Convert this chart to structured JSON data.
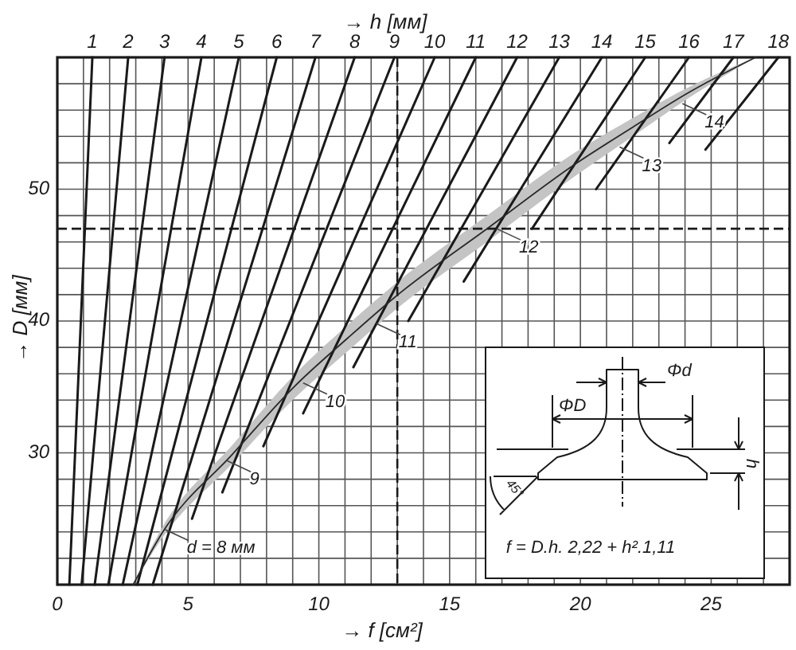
{
  "chart_data": {
    "type": "line",
    "xlabel": "→ f [см²]",
    "ylabel": "→ D [мм]",
    "legend_title": "→ h [мм]",
    "xlim": [
      0,
      28
    ],
    "ylim": [
      20,
      60
    ],
    "xticks": [
      0,
      {
        "value": 1,
        "label": null
      },
      {
        "value": 2,
        "label": null
      },
      {
        "value": 3,
        "label": null
      },
      {
        "value": 4,
        "label": null
      },
      5,
      {
        "value": 6,
        "label": null
      },
      {
        "value": 7,
        "label": null
      },
      {
        "value": 8,
        "label": null
      },
      {
        "value": 9,
        "label": null
      },
      10,
      {
        "value": 11,
        "label": null
      },
      {
        "value": 12,
        "label": null
      },
      {
        "value": 13,
        "label": null
      },
      {
        "value": 14,
        "label": null
      },
      15,
      {
        "value": 16,
        "label": null
      },
      {
        "value": 17,
        "label": null
      },
      {
        "value": 18,
        "label": null
      },
      {
        "value": 19,
        "label": null
      },
      20,
      {
        "value": 21,
        "label": null
      },
      {
        "value": 22,
        "label": null
      },
      {
        "value": 23,
        "label": null
      },
      {
        "value": 24,
        "label": null
      },
      25,
      {
        "value": 26,
        "label": null
      },
      {
        "value": 27,
        "label": null
      },
      {
        "value": 28,
        "label": null
      }
    ],
    "yticks": [
      {
        "value": 20,
        "label": null
      },
      {
        "value": 22,
        "label": null
      },
      {
        "value": 24,
        "label": null
      },
      {
        "value": 26,
        "label": null
      },
      {
        "value": 28,
        "label": null
      },
      30,
      {
        "value": 32,
        "label": null
      },
      {
        "value": 34,
        "label": null
      },
      {
        "value": 36,
        "label": null
      },
      {
        "value": 38,
        "label": null
      },
      40,
      {
        "value": 42,
        "label": null
      },
      {
        "value": 44,
        "label": null
      },
      {
        "value": 46,
        "label": null
      },
      {
        "value": 48,
        "label": null
      },
      50,
      {
        "value": 52,
        "label": null
      },
      {
        "value": 54,
        "label": null
      },
      {
        "value": 56,
        "label": null
      },
      {
        "value": 58,
        "label": null
      },
      {
        "value": 60,
        "label": null
      }
    ],
    "grid": true,
    "series": [
      {
        "name": "1",
        "color": "#1a1a1a",
        "x": [
          0.46,
          1.34
        ],
        "values": [
          20,
          60
        ]
      },
      {
        "name": "2",
        "color": "#1a1a1a",
        "x": [
          0.93,
          2.71
        ],
        "values": [
          20,
          60
        ]
      },
      {
        "name": "3",
        "color": "#1a1a1a",
        "x": [
          1.43,
          4.1
        ],
        "values": [
          20,
          60
        ]
      },
      {
        "name": "4",
        "color": "#1a1a1a",
        "x": [
          1.95,
          5.51
        ],
        "values": [
          20,
          60
        ]
      },
      {
        "name": "5",
        "color": "#1a1a1a",
        "x": [
          2.5,
          6.94
        ],
        "values": [
          20,
          60
        ]
      },
      {
        "name": "6",
        "color": "#1a1a1a",
        "x": [
          3.06,
          8.39
        ],
        "values": [
          20,
          60
        ]
      },
      {
        "name": "7",
        "color": "#1a1a1a",
        "x": [
          3.65,
          9.87
        ],
        "values": [
          20,
          60
        ]
      },
      {
        "name": "8",
        "color": "#1a1a1a",
        "x": [
          5.15,
          11.37
        ],
        "values": [
          25,
          60
        ]
      },
      {
        "name": "9",
        "color": "#1a1a1a",
        "x": [
          6.31,
          12.89
        ],
        "values": [
          27,
          60
        ]
      },
      {
        "name": "10",
        "color": "#1a1a1a",
        "x": [
          7.88,
          14.43
        ],
        "values": [
          30.5,
          60
        ]
      },
      {
        "name": "11",
        "color": "#1a1a1a",
        "x": [
          9.4,
          16.0
        ],
        "values": [
          33,
          60
        ]
      },
      {
        "name": "12",
        "color": "#1a1a1a",
        "x": [
          11.32,
          17.58
        ],
        "values": [
          36.5,
          60
        ]
      },
      {
        "name": "13",
        "color": "#1a1a1a",
        "x": [
          13.42,
          19.19
        ],
        "values": [
          40,
          60
        ]
      },
      {
        "name": "14",
        "color": "#1a1a1a",
        "x": [
          15.54,
          20.82
        ],
        "values": [
          43,
          60
        ]
      },
      {
        "name": "15",
        "color": "#1a1a1a",
        "x": [
          18.15,
          22.48
        ],
        "values": [
          47,
          60
        ]
      },
      {
        "name": "16",
        "color": "#1a1a1a",
        "x": [
          20.6,
          24.15
        ],
        "values": [
          50,
          60
        ]
      },
      {
        "name": "17",
        "color": "#1a1a1a",
        "x": [
          23.4,
          25.85
        ],
        "values": [
          53.5,
          60
        ]
      },
      {
        "name": "18",
        "color": "#1a1a1a",
        "x": [
          24.78,
          27.57
        ],
        "values": [
          53,
          60
        ]
      },
      {
        "color": "#2a2a2a",
        "x": [
          2.9,
          4.0,
          6.7,
          9.1,
          11.1,
          12.9,
          16.5,
          19.8,
          22.0,
          24.2,
          26.7
        ],
        "values": [
          20,
          23.9,
          29.9,
          35.1,
          38.7,
          41.8,
          47.1,
          51.9,
          54.7,
          57.4,
          60
        ],
        "lower": [
          20,
          23.5,
          29.2,
          34.2,
          37.7,
          40.8,
          46.1,
          51.0,
          54.0,
          57.0,
          60
        ],
        "upper": [
          20,
          24.3,
          30.6,
          36.0,
          39.7,
          42.8,
          48.1,
          52.8,
          55.4,
          57.8,
          60
        ]
      }
    ],
    "ref_lines": [
      {
        "axis": "x",
        "value": 13,
        "line_style": "dashed"
      },
      {
        "axis": "y",
        "value": 47,
        "line_style": "dashed"
      }
    ],
    "annotations": [
      {
        "text": "d = 8 мм",
        "x": 4.1,
        "y": 24.2
      },
      {
        "text": "9",
        "x": 6.5,
        "y": 29.4
      },
      {
        "text": "10",
        "x": 9.4,
        "y": 35.3
      },
      {
        "text": "11",
        "x": 12.2,
        "y": 39.8
      },
      {
        "text": "12",
        "x": 16.8,
        "y": 47.0
      },
      {
        "text": "13",
        "x": 21.5,
        "y": 53.2
      },
      {
        "text": "14",
        "x": 23.9,
        "y": 56.5
      },
      "Φd",
      "ΦD",
      "h",
      "45°",
      "f = D.h. 2,22 + h².1,11"
    ]
  }
}
